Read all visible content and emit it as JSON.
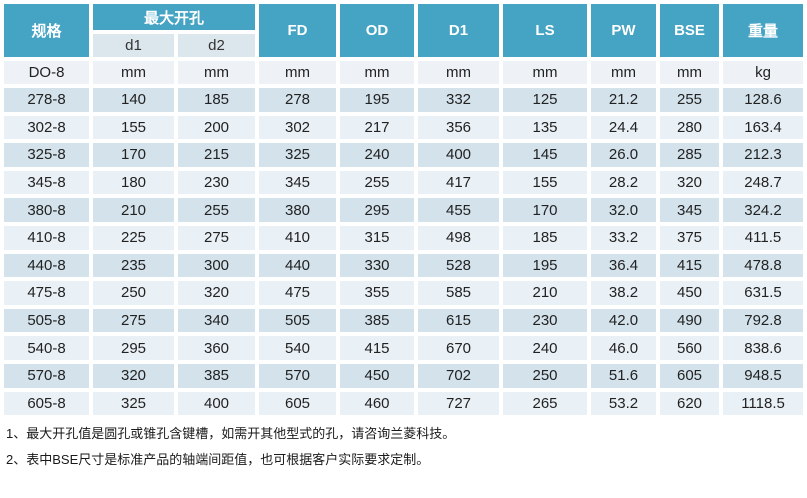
{
  "table": {
    "header": {
      "spec": "规格",
      "max_bore_group": "最大开孔",
      "sub_d1": "d1",
      "sub_d2": "d2",
      "cols": [
        "FD",
        "OD",
        "D1",
        "LS",
        "PW",
        "BSE",
        "重量"
      ]
    },
    "units_row": [
      "DO-8",
      "mm",
      "mm",
      "mm",
      "mm",
      "mm",
      "mm",
      "mm",
      "mm",
      "kg"
    ],
    "rows": [
      [
        "278-8",
        "140",
        "185",
        "278",
        "195",
        "332",
        "125",
        "21.2",
        "255",
        "128.6"
      ],
      [
        "302-8",
        "155",
        "200",
        "302",
        "217",
        "356",
        "135",
        "24.4",
        "280",
        "163.4"
      ],
      [
        "325-8",
        "170",
        "215",
        "325",
        "240",
        "400",
        "145",
        "26.0",
        "285",
        "212.3"
      ],
      [
        "345-8",
        "180",
        "230",
        "345",
        "255",
        "417",
        "155",
        "28.2",
        "320",
        "248.7"
      ],
      [
        "380-8",
        "210",
        "255",
        "380",
        "295",
        "455",
        "170",
        "32.0",
        "345",
        "324.2"
      ],
      [
        "410-8",
        "225",
        "275",
        "410",
        "315",
        "498",
        "185",
        "33.2",
        "375",
        "411.5"
      ],
      [
        "440-8",
        "235",
        "300",
        "440",
        "330",
        "528",
        "195",
        "36.4",
        "415",
        "478.8"
      ],
      [
        "475-8",
        "250",
        "320",
        "475",
        "355",
        "585",
        "210",
        "38.2",
        "450",
        "631.5"
      ],
      [
        "505-8",
        "275",
        "340",
        "505",
        "385",
        "615",
        "230",
        "42.0",
        "490",
        "792.8"
      ],
      [
        "540-8",
        "295",
        "360",
        "540",
        "415",
        "670",
        "240",
        "46.0",
        "560",
        "838.6"
      ],
      [
        "570-8",
        "320",
        "385",
        "570",
        "450",
        "702",
        "250",
        "51.6",
        "605",
        "948.5"
      ],
      [
        "605-8",
        "325",
        "400",
        "605",
        "460",
        "727",
        "265",
        "53.2",
        "620",
        "1118.5"
      ]
    ]
  },
  "notes": [
    "1、最大开孔值是圆孔或锥孔含键槽，如需开其他型式的孔，请咨询兰菱科技。",
    "2、表中BSE尺寸是标准产品的轴端间距值，也可根据客户实际要求定制。"
  ],
  "colors": {
    "header_teal": "#45a3c3",
    "subheader_bg": "#dce6ed",
    "units_row_bg": "#eef2f6",
    "row_dark_bg": "#d3e2eb",
    "row_light_bg": "#eaf1f6",
    "header_text": "#ffffff",
    "body_text": "#222222"
  }
}
